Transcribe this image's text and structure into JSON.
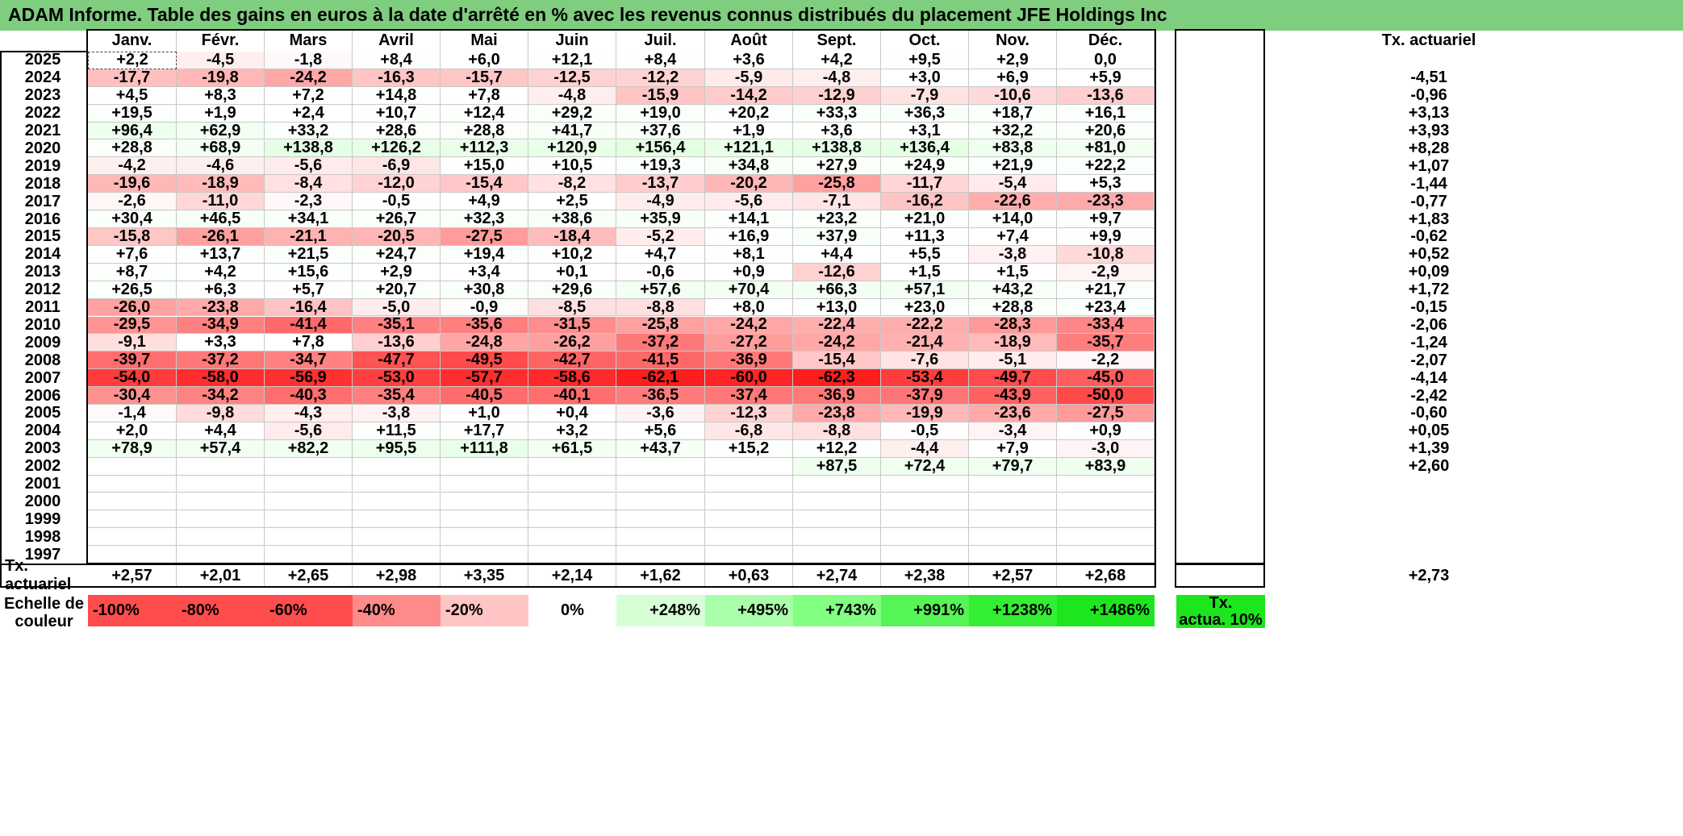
{
  "title": "ADAM Informe. Table des gains en euros à la date d'arrêté en % avec les revenus connus distribués du placement JFE Holdings Inc",
  "months": [
    "Janv.",
    "Févr.",
    "Mars",
    "Avril",
    "Mai",
    "Juin",
    "Juil.",
    "Août",
    "Sept.",
    "Oct.",
    "Nov.",
    "Déc."
  ],
  "annual_header": "Tx. actuariel",
  "rows": [
    {
      "year": "2025",
      "values": [
        "+2,2",
        "-4,5",
        "-1,8",
        "+8,4",
        "+6,0",
        "+12,1",
        "+8,4",
        "+3,6",
        "+4,2",
        "+9,5",
        "+2,9",
        "0,0"
      ],
      "annual": ""
    },
    {
      "year": "2024",
      "values": [
        "-17,7",
        "-19,8",
        "-24,2",
        "-16,3",
        "-15,7",
        "-12,5",
        "-12,2",
        "-5,9",
        "-4,8",
        "+3,0",
        "+6,9",
        "+5,9"
      ],
      "annual": "-4,51"
    },
    {
      "year": "2023",
      "values": [
        "+4,5",
        "+8,3",
        "+7,2",
        "+14,8",
        "+7,8",
        "-4,8",
        "-15,9",
        "-14,2",
        "-12,9",
        "-7,9",
        "-10,6",
        "-13,6"
      ],
      "annual": "-0,96"
    },
    {
      "year": "2022",
      "values": [
        "+19,5",
        "+1,9",
        "+2,4",
        "+10,7",
        "+12,4",
        "+29,2",
        "+19,0",
        "+20,2",
        "+33,3",
        "+36,3",
        "+18,7",
        "+16,1"
      ],
      "annual": "+3,13"
    },
    {
      "year": "2021",
      "values": [
        "+96,4",
        "+62,9",
        "+33,2",
        "+28,6",
        "+28,8",
        "+41,7",
        "+37,6",
        "+1,9",
        "+3,6",
        "+3,1",
        "+32,2",
        "+20,6"
      ],
      "annual": "+3,93"
    },
    {
      "year": "2020",
      "values": [
        "+28,8",
        "+68,9",
        "+138,8",
        "+126,2",
        "+112,3",
        "+120,9",
        "+156,4",
        "+121,1",
        "+138,8",
        "+136,4",
        "+83,8",
        "+81,0"
      ],
      "annual": "+8,28"
    },
    {
      "year": "2019",
      "values": [
        "-4,2",
        "-4,6",
        "-5,6",
        "-6,9",
        "+15,0",
        "+10,5",
        "+19,3",
        "+34,8",
        "+27,9",
        "+24,9",
        "+21,9",
        "+22,2"
      ],
      "annual": "+1,07"
    },
    {
      "year": "2018",
      "values": [
        "-19,6",
        "-18,9",
        "-8,4",
        "-12,0",
        "-15,4",
        "-8,2",
        "-13,7",
        "-20,2",
        "-25,8",
        "-11,7",
        "-5,4",
        "+5,3"
      ],
      "annual": "-1,44"
    },
    {
      "year": "2017",
      "values": [
        "-2,6",
        "-11,0",
        "-2,3",
        "-0,5",
        "+4,9",
        "+2,5",
        "-4,9",
        "-5,6",
        "-7,1",
        "-16,2",
        "-22,6",
        "-23,3"
      ],
      "annual": "-0,77"
    },
    {
      "year": "2016",
      "values": [
        "+30,4",
        "+46,5",
        "+34,1",
        "+26,7",
        "+32,3",
        "+38,6",
        "+35,9",
        "+14,1",
        "+23,2",
        "+21,0",
        "+14,0",
        "+9,7"
      ],
      "annual": "+1,83"
    },
    {
      "year": "2015",
      "values": [
        "-15,8",
        "-26,1",
        "-21,1",
        "-20,5",
        "-27,5",
        "-18,4",
        "-5,2",
        "+16,9",
        "+37,9",
        "+11,3",
        "+7,4",
        "+9,9"
      ],
      "annual": "-0,62"
    },
    {
      "year": "2014",
      "values": [
        "+7,6",
        "+13,7",
        "+21,5",
        "+24,7",
        "+19,4",
        "+10,2",
        "+4,7",
        "+8,1",
        "+4,4",
        "+5,5",
        "-3,8",
        "-10,8"
      ],
      "annual": "+0,52"
    },
    {
      "year": "2013",
      "values": [
        "+8,7",
        "+4,2",
        "+15,6",
        "+2,9",
        "+3,4",
        "+0,1",
        "-0,6",
        "+0,9",
        "-12,6",
        "+1,5",
        "+1,5",
        "-2,9"
      ],
      "annual": "+0,09"
    },
    {
      "year": "2012",
      "values": [
        "+26,5",
        "+6,3",
        "+5,7",
        "+20,7",
        "+30,8",
        "+29,6",
        "+57,6",
        "+70,4",
        "+66,3",
        "+57,1",
        "+43,2",
        "+21,7"
      ],
      "annual": "+1,72"
    },
    {
      "year": "2011",
      "values": [
        "-26,0",
        "-23,8",
        "-16,4",
        "-5,0",
        "-0,9",
        "-8,5",
        "-8,8",
        "+8,0",
        "+13,0",
        "+23,0",
        "+28,8",
        "+23,4"
      ],
      "annual": "-0,15"
    },
    {
      "year": "2010",
      "values": [
        "-29,5",
        "-34,9",
        "-41,4",
        "-35,1",
        "-35,6",
        "-31,5",
        "-25,8",
        "-24,2",
        "-22,4",
        "-22,2",
        "-28,3",
        "-33,4"
      ],
      "annual": "-2,06"
    },
    {
      "year": "2009",
      "values": [
        "-9,1",
        "+3,3",
        "+7,8",
        "-13,6",
        "-24,8",
        "-26,2",
        "-37,2",
        "-27,2",
        "-24,2",
        "-21,4",
        "-18,9",
        "-35,7"
      ],
      "annual": "-1,24"
    },
    {
      "year": "2008",
      "values": [
        "-39,7",
        "-37,2",
        "-34,7",
        "-47,7",
        "-49,5",
        "-42,7",
        "-41,5",
        "-36,9",
        "-15,4",
        "-7,6",
        "-5,1",
        "-2,2"
      ],
      "annual": "-2,07"
    },
    {
      "year": "2007",
      "values": [
        "-54,0",
        "-58,0",
        "-56,9",
        "-53,0",
        "-57,7",
        "-58,6",
        "-62,1",
        "-60,0",
        "-62,3",
        "-53,4",
        "-49,7",
        "-45,0"
      ],
      "annual": "-4,14"
    },
    {
      "year": "2006",
      "values": [
        "-30,4",
        "-34,2",
        "-40,3",
        "-35,4",
        "-40,5",
        "-40,1",
        "-36,5",
        "-37,4",
        "-36,9",
        "-37,9",
        "-43,9",
        "-50,0"
      ],
      "annual": "-2,42"
    },
    {
      "year": "2005",
      "values": [
        "-1,4",
        "-9,8",
        "-4,3",
        "-3,8",
        "+1,0",
        "+0,4",
        "-3,6",
        "-12,3",
        "-23,8",
        "-19,9",
        "-23,6",
        "-27,5"
      ],
      "annual": "-0,60"
    },
    {
      "year": "2004",
      "values": [
        "+2,0",
        "+4,4",
        "-5,6",
        "+11,5",
        "+17,7",
        "+3,2",
        "+5,6",
        "-6,8",
        "-8,8",
        "-0,5",
        "-3,4",
        "+0,9"
      ],
      "annual": "+0,05"
    },
    {
      "year": "2003",
      "values": [
        "+78,9",
        "+57,4",
        "+82,2",
        "+95,5",
        "+111,8",
        "+61,5",
        "+43,7",
        "+15,2",
        "+12,2",
        "-4,4",
        "+7,9",
        "-3,0"
      ],
      "annual": "+1,39"
    },
    {
      "year": "2002",
      "values": [
        "",
        "",
        "",
        "",
        "",
        "",
        "",
        "",
        "+87,5",
        "+72,4",
        "+79,7",
        "+83,9"
      ],
      "annual": "+2,60"
    },
    {
      "year": "2001",
      "values": [
        "",
        "",
        "",
        "",
        "",
        "",
        "",
        "",
        "",
        "",
        "",
        ""
      ],
      "annual": ""
    },
    {
      "year": "2000",
      "values": [
        "",
        "",
        "",
        "",
        "",
        "",
        "",
        "",
        "",
        "",
        "",
        ""
      ],
      "annual": ""
    },
    {
      "year": "1999",
      "values": [
        "",
        "",
        "",
        "",
        "",
        "",
        "",
        "",
        "",
        "",
        "",
        ""
      ],
      "annual": ""
    },
    {
      "year": "1998",
      "values": [
        "",
        "",
        "",
        "",
        "",
        "",
        "",
        "",
        "",
        "",
        "",
        ""
      ],
      "annual": ""
    },
    {
      "year": "1997",
      "values": [
        "",
        "",
        "",
        "",
        "",
        "",
        "",
        "",
        "",
        "",
        "",
        ""
      ],
      "annual": ""
    }
  ],
  "summary": {
    "label": "Tx. actuariel",
    "values": [
      "+2,57",
      "+2,01",
      "+2,65",
      "+2,98",
      "+3,35",
      "+2,14",
      "+1,62",
      "+0,63",
      "+2,74",
      "+2,38",
      "+2,57",
      "+2,68"
    ],
    "annual": "+2,73"
  },
  "scale": {
    "label_line1": "Echelle de",
    "label_line2": "couleur",
    "items": [
      {
        "text": "-100%",
        "color": "#ff4d4d"
      },
      {
        "text": "-80%",
        "color": "#ff4d4d"
      },
      {
        "text": "-60%",
        "color": "#ff4d4d"
      },
      {
        "text": "-40%",
        "color": "#ff8a8a"
      },
      {
        "text": "-20%",
        "color": "#ffc4c4"
      },
      {
        "text": "0%",
        "color": "#ffffff"
      },
      {
        "text": "+248%",
        "color": "#d6ffd6"
      },
      {
        "text": "+495%",
        "color": "#aaffaa"
      },
      {
        "text": "+743%",
        "color": "#80ff80"
      },
      {
        "text": "+991%",
        "color": "#55f555"
      },
      {
        "text": "+1238%",
        "color": "#33ee33"
      },
      {
        "text": "+1486%",
        "color": "#1ee61e"
      }
    ],
    "annual_label_line1": "Tx.",
    "annual_label_line2": "actua. 10%",
    "annual_color": "#1ee61e"
  }
}
